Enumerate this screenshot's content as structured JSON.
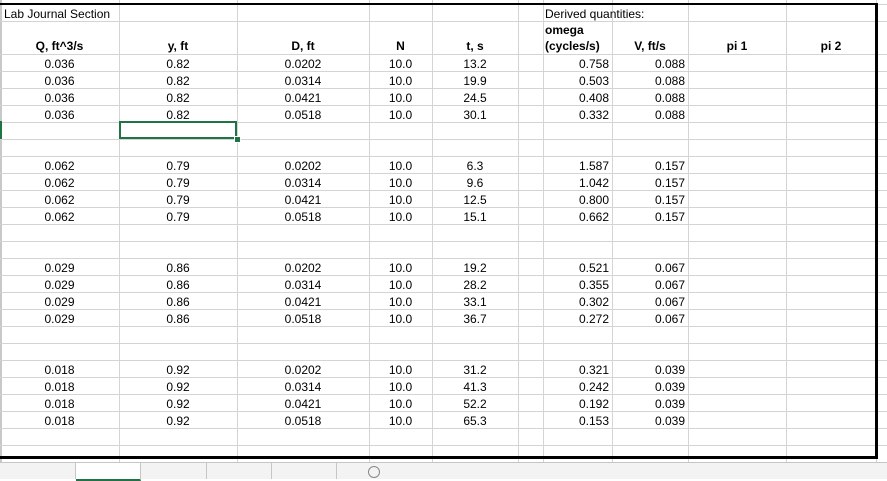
{
  "title_cell": "Lab Journal Section",
  "derived_label": "Derived quantities:",
  "headers": {
    "Q": "Q, ft^3/s",
    "y": "y, ft",
    "D": "D, ft",
    "N": "N",
    "t": "t, s",
    "omega_line1": "omega",
    "omega_line2": "(cycles/s)",
    "V": "V, ft/s",
    "pi1": "pi 1",
    "pi2": "pi 2"
  },
  "groups": [
    {
      "rows": [
        [
          "0.036",
          "0.82",
          "0.0202",
          "10.0",
          "13.2",
          "0.758",
          "0.088"
        ],
        [
          "0.036",
          "0.82",
          "0.0314",
          "10.0",
          "19.9",
          "0.503",
          "0.088"
        ],
        [
          "0.036",
          "0.82",
          "0.0421",
          "10.0",
          "24.5",
          "0.408",
          "0.088"
        ],
        [
          "0.036",
          "0.82",
          "0.0518",
          "10.0",
          "30.1",
          "0.332",
          "0.088"
        ]
      ]
    },
    {
      "rows": [
        [
          "0.062",
          "0.79",
          "0.0202",
          "10.0",
          "6.3",
          "1.587",
          "0.157"
        ],
        [
          "0.062",
          "0.79",
          "0.0314",
          "10.0",
          "9.6",
          "1.042",
          "0.157"
        ],
        [
          "0.062",
          "0.79",
          "0.0421",
          "10.0",
          "12.5",
          "0.800",
          "0.157"
        ],
        [
          "0.062",
          "0.79",
          "0.0518",
          "10.0",
          "15.1",
          "0.662",
          "0.157"
        ]
      ]
    },
    {
      "rows": [
        [
          "0.029",
          "0.86",
          "0.0202",
          "10.0",
          "19.2",
          "0.521",
          "0.067"
        ],
        [
          "0.029",
          "0.86",
          "0.0314",
          "10.0",
          "28.2",
          "0.355",
          "0.067"
        ],
        [
          "0.029",
          "0.86",
          "0.0421",
          "10.0",
          "33.1",
          "0.302",
          "0.067"
        ],
        [
          "0.029",
          "0.86",
          "0.0518",
          "10.0",
          "36.7",
          "0.272",
          "0.067"
        ]
      ]
    },
    {
      "rows": [
        [
          "0.018",
          "0.92",
          "0.0202",
          "10.0",
          "31.2",
          "0.321",
          "0.039"
        ],
        [
          "0.018",
          "0.92",
          "0.0314",
          "10.0",
          "41.3",
          "0.242",
          "0.039"
        ],
        [
          "0.018",
          "0.92",
          "0.0421",
          "10.0",
          "52.2",
          "0.192",
          "0.039"
        ],
        [
          "0.018",
          "0.92",
          "0.0518",
          "10.0",
          "65.3",
          "0.153",
          "0.039"
        ]
      ]
    }
  ],
  "colors": {
    "selection": "#217346",
    "grid": "#d4d4d4"
  }
}
